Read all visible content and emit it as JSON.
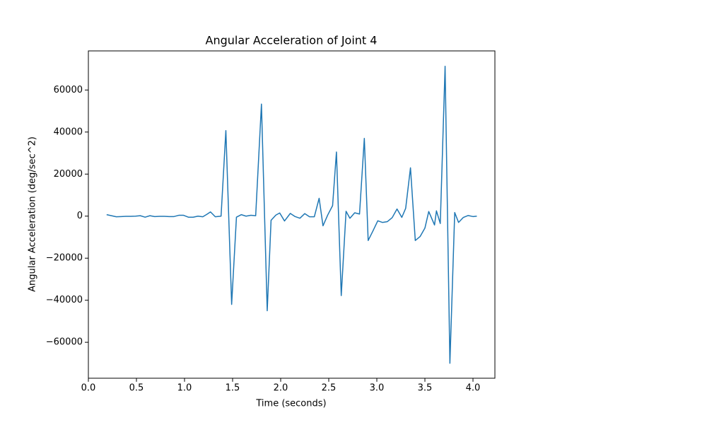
{
  "chart_data": {
    "type": "line",
    "title": "Angular Acceleration of Joint 4",
    "x_label": "Time (seconds)",
    "y_label": "Angular Acceleration (deg/sec^2)",
    "x": [
      0.19,
      0.24,
      0.29,
      0.34,
      0.39,
      0.44,
      0.49,
      0.54,
      0.59,
      0.64,
      0.69,
      0.74,
      0.79,
      0.84,
      0.89,
      0.94,
      0.99,
      1.04,
      1.09,
      1.14,
      1.19,
      1.23,
      1.27,
      1.32,
      1.38,
      1.43,
      1.49,
      1.54,
      1.59,
      1.64,
      1.69,
      1.74,
      1.8,
      1.86,
      1.9,
      1.95,
      1.99,
      2.04,
      2.1,
      2.15,
      2.2,
      2.25,
      2.3,
      2.35,
      2.4,
      2.44,
      2.49,
      2.54,
      2.58,
      2.63,
      2.68,
      2.72,
      2.77,
      2.82,
      2.87,
      2.91,
      2.96,
      3.01,
      3.06,
      3.11,
      3.16,
      3.21,
      3.26,
      3.3,
      3.35,
      3.4,
      3.45,
      3.5,
      3.54,
      3.6,
      3.62,
      3.66,
      3.71,
      3.76,
      3.81,
      3.85,
      3.9,
      3.95,
      4.0,
      4.04
    ],
    "series": [
      {
        "name": "Joint 4",
        "color": "#1f77b4",
        "values": [
          700,
          200,
          -300,
          -200,
          -100,
          -100,
          0,
          200,
          -500,
          200,
          -200,
          -100,
          -100,
          -200,
          -200,
          400,
          400,
          -500,
          -500,
          0,
          -300,
          800,
          2000,
          -300,
          0,
          40700,
          -42000,
          -500,
          700,
          0,
          400,
          200,
          53300,
          -45000,
          -2000,
          500,
          1500,
          -2300,
          1300,
          -200,
          -1000,
          1200,
          -300,
          -300,
          8500,
          -4600,
          600,
          5000,
          30500,
          -37800,
          2300,
          -1000,
          1600,
          1000,
          37000,
          -11600,
          -7000,
          -2200,
          -3000,
          -2600,
          -700,
          3400,
          -600,
          3700,
          23000,
          -11600,
          -9700,
          -5700,
          2200,
          -4200,
          2500,
          -3500,
          71300,
          -70000,
          1700,
          -3000,
          -600,
          300,
          -200,
          0
        ]
      }
    ],
    "xlim": [
      0.0,
      4.228
    ],
    "ylim": [
      -77100,
      78600
    ],
    "xticks": [
      {
        "value": 0,
        "label": "0.0"
      },
      {
        "value": 0.5,
        "label": "0.5"
      },
      {
        "value": 1,
        "label": "1.0"
      },
      {
        "value": 1.5,
        "label": "1.5"
      },
      {
        "value": 2,
        "label": "2.0"
      },
      {
        "value": 2.5,
        "label": "2.5"
      },
      {
        "value": 3,
        "label": "3.0"
      },
      {
        "value": 3.5,
        "label": "3.5"
      },
      {
        "value": 4,
        "label": "4.0"
      }
    ],
    "yticks": [
      {
        "value": -60000,
        "label": "−60000"
      },
      {
        "value": -40000,
        "label": "−40000"
      },
      {
        "value": -20000,
        "label": "−20000"
      },
      0,
      20000,
      40000,
      60000
    ],
    "grid": false
  }
}
